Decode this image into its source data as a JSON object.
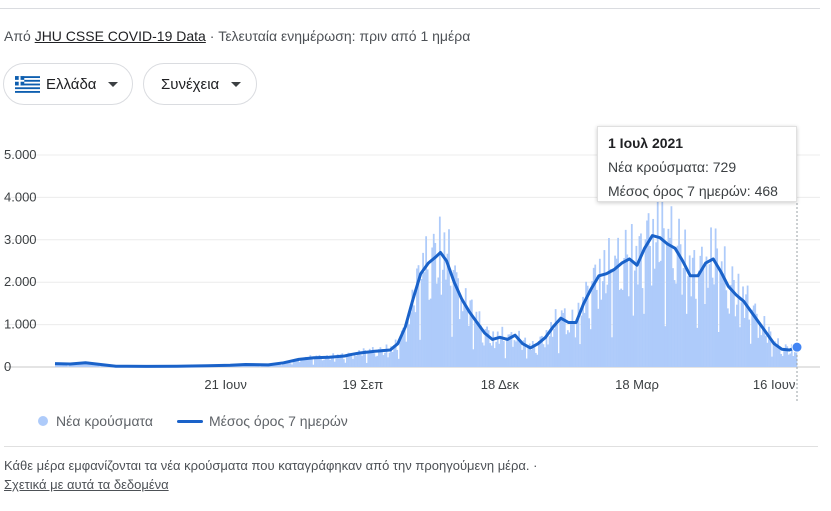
{
  "source": {
    "prefix": "Από ",
    "link_text": "JHU CSSE COVID-19 Data",
    "updated": " · Τελευταία ενημέρωση: πριν από 1 ημέρα"
  },
  "controls": {
    "country": "Ελλάδα",
    "metric": "Συνέχεια"
  },
  "tooltip": {
    "date": "1 Ιουλ 2021",
    "new_cases": "Νέα κρούσματα: 729",
    "avg": "Μέσος όρος 7 ημερών: 468"
  },
  "legend": {
    "bars": "Νέα κρούσματα",
    "line": "Μέσος όρος 7 ημερών"
  },
  "footer": {
    "note": "Κάθε μέρα εμφανίζονται τα νέα κρούσματα που καταγράφηκαν από την προηγούμενη μέρα.  ·",
    "link": "Σχετικά με αυτά τα δεδομένα"
  },
  "colors": {
    "bars": "#aecbfa",
    "line": "#1a62c9",
    "grid": "#ececec"
  },
  "chart_data": {
    "type": "bar",
    "description_series": [
      "Νέα κρούσματα (bars)",
      "Μέσος όρος 7 ημερών (line)"
    ],
    "y_ticks": [
      "0",
      "1.000",
      "2.000",
      "3.000",
      "4.000",
      "5.000"
    ],
    "x_tick_labels": [
      "21 Ιουν",
      "19 Σεπ",
      "18 Δεκ",
      "18 Μαρ",
      "16 Ιουν"
    ],
    "x_tick_days": [
      112,
      202,
      292,
      382,
      472
    ],
    "ylim": [
      0,
      5000
    ],
    "x_start_day": 0,
    "x_end_day": 487,
    "grid": true,
    "line_points": [
      [
        0,
        80
      ],
      [
        10,
        70
      ],
      [
        20,
        100
      ],
      [
        30,
        60
      ],
      [
        40,
        20
      ],
      [
        60,
        15
      ],
      [
        80,
        20
      ],
      [
        100,
        30
      ],
      [
        115,
        40
      ],
      [
        125,
        60
      ],
      [
        140,
        50
      ],
      [
        150,
        100
      ],
      [
        160,
        180
      ],
      [
        170,
        220
      ],
      [
        180,
        230
      ],
      [
        190,
        260
      ],
      [
        195,
        300
      ],
      [
        200,
        330
      ],
      [
        210,
        370
      ],
      [
        220,
        400
      ],
      [
        225,
        550
      ],
      [
        230,
        950
      ],
      [
        235,
        1600
      ],
      [
        240,
        2200
      ],
      [
        245,
        2450
      ],
      [
        250,
        2600
      ],
      [
        253,
        2700
      ],
      [
        257,
        2500
      ],
      [
        262,
        2000
      ],
      [
        267,
        1600
      ],
      [
        272,
        1300
      ],
      [
        277,
        1050
      ],
      [
        282,
        800
      ],
      [
        287,
        650
      ],
      [
        292,
        700
      ],
      [
        297,
        650
      ],
      [
        302,
        750
      ],
      [
        307,
        550
      ],
      [
        312,
        450
      ],
      [
        317,
        550
      ],
      [
        322,
        700
      ],
      [
        327,
        950
      ],
      [
        332,
        1150
      ],
      [
        337,
        1050
      ],
      [
        342,
        1050
      ],
      [
        347,
        1500
      ],
      [
        352,
        1850
      ],
      [
        357,
        2150
      ],
      [
        362,
        2200
      ],
      [
        367,
        2300
      ],
      [
        372,
        2450
      ],
      [
        377,
        2550
      ],
      [
        382,
        2400
      ],
      [
        387,
        2800
      ],
      [
        392,
        3100
      ],
      [
        397,
        3050
      ],
      [
        402,
        2900
      ],
      [
        407,
        2800
      ],
      [
        412,
        2500
      ],
      [
        417,
        2150
      ],
      [
        422,
        2150
      ],
      [
        427,
        2450
      ],
      [
        432,
        2550
      ],
      [
        437,
        2250
      ],
      [
        442,
        1900
      ],
      [
        447,
        1700
      ],
      [
        452,
        1550
      ],
      [
        457,
        1300
      ],
      [
        462,
        1050
      ],
      [
        467,
        800
      ],
      [
        472,
        550
      ],
      [
        477,
        420
      ],
      [
        482,
        400
      ],
      [
        487,
        468
      ]
    ],
    "highlight": {
      "day": 487,
      "new_cases": 729,
      "avg": 468
    }
  }
}
